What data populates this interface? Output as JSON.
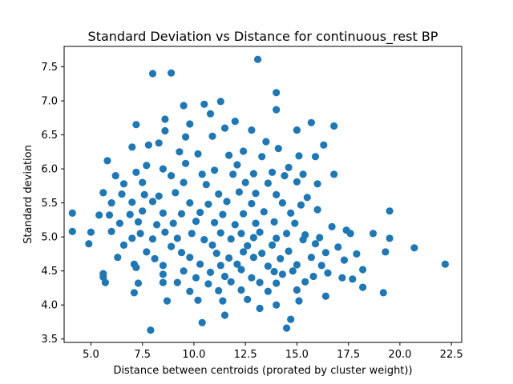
{
  "chart_data": {
    "type": "scatter",
    "title": "Standard Deviation vs Distance for continuous_rest BP",
    "xlabel": "Distance between centroids (prorated by cluster weight))",
    "ylabel": "Standard deviation",
    "xlim": [
      3.7,
      23.0
    ],
    "ylim": [
      3.45,
      7.8
    ],
    "xticks": [
      5.0,
      7.5,
      10.0,
      12.5,
      15.0,
      17.5,
      20.0,
      22.5
    ],
    "xtick_labels": [
      "5.0",
      "7.5",
      "10.0",
      "12.5",
      "15.0",
      "17.5",
      "20.0",
      "22.5"
    ],
    "yticks": [
      3.5,
      4.0,
      4.5,
      5.0,
      5.5,
      6.0,
      6.5,
      7.0,
      7.5
    ],
    "ytick_labels": [
      "3.5",
      "4.0",
      "4.5",
      "5.0",
      "5.5",
      "6.0",
      "6.5",
      "7.0",
      "7.5"
    ],
    "grid": false,
    "legend": "none",
    "marker_color": "#1f77b4",
    "points": [
      [
        13.1,
        7.61
      ],
      [
        8.0,
        7.4
      ],
      [
        8.9,
        7.41
      ],
      [
        14.0,
        7.12
      ],
      [
        11.3,
        6.99
      ],
      [
        10.5,
        6.95
      ],
      [
        9.5,
        6.93
      ],
      [
        14.0,
        6.87
      ],
      [
        10.8,
        6.81
      ],
      [
        8.6,
        6.73
      ],
      [
        12.0,
        6.7
      ],
      [
        9.8,
        6.66
      ],
      [
        7.2,
        6.65
      ],
      [
        16.8,
        6.63
      ],
      [
        8.6,
        6.56
      ],
      [
        15.0,
        6.57
      ],
      [
        11.5,
        6.6
      ],
      [
        12.8,
        6.57
      ],
      [
        15.7,
        6.68
      ],
      [
        9.6,
        6.47
      ],
      [
        10.9,
        6.48
      ],
      [
        13.5,
        6.4
      ],
      [
        7.8,
        6.35
      ],
      [
        8.3,
        6.38
      ],
      [
        16.3,
        6.35
      ],
      [
        5.8,
        6.12
      ],
      [
        7.0,
        6.32
      ],
      [
        9.3,
        6.25
      ],
      [
        10.2,
        6.22
      ],
      [
        11.7,
        6.2
      ],
      [
        12.4,
        6.26
      ],
      [
        13.3,
        6.18
      ],
      [
        14.1,
        6.3
      ],
      [
        15.1,
        6.19
      ],
      [
        15.9,
        6.18
      ],
      [
        8.5,
        6.0
      ],
      [
        9.6,
        6.08
      ],
      [
        11.0,
        5.98
      ],
      [
        12.1,
        6.06
      ],
      [
        13.8,
        5.95
      ],
      [
        14.6,
        6.02
      ],
      [
        7.7,
        6.05
      ],
      [
        6.2,
        5.9
      ],
      [
        7.2,
        5.95
      ],
      [
        8.9,
        5.9
      ],
      [
        10.4,
        5.92
      ],
      [
        11.9,
        5.92
      ],
      [
        12.9,
        5.93
      ],
      [
        14.4,
        5.9
      ],
      [
        15.3,
        5.92
      ],
      [
        16.8,
        5.92
      ],
      [
        6.6,
        5.78
      ],
      [
        7.5,
        5.8
      ],
      [
        9.5,
        5.8
      ],
      [
        10.6,
        5.77
      ],
      [
        12.5,
        5.8
      ],
      [
        13.6,
        5.79
      ],
      [
        15.0,
        5.81
      ],
      [
        16.0,
        5.78
      ],
      [
        5.6,
        5.65
      ],
      [
        6.5,
        5.63
      ],
      [
        7.6,
        5.62
      ],
      [
        8.3,
        5.6
      ],
      [
        9.1,
        5.65
      ],
      [
        11.2,
        5.63
      ],
      [
        12.2,
        5.66
      ],
      [
        13.0,
        5.64
      ],
      [
        14.0,
        5.62
      ],
      [
        15.5,
        5.58
      ],
      [
        6.0,
        5.5
      ],
      [
        7.0,
        5.51
      ],
      [
        8.0,
        5.52
      ],
      [
        9.8,
        5.5
      ],
      [
        10.7,
        5.48
      ],
      [
        11.6,
        5.52
      ],
      [
        12.8,
        5.49
      ],
      [
        14.3,
        5.5
      ],
      [
        15.2,
        5.47
      ],
      [
        5.9,
        5.32
      ],
      [
        6.9,
        5.33
      ],
      [
        7.5,
        5.38
      ],
      [
        8.5,
        5.35
      ],
      [
        9.4,
        5.34
      ],
      [
        10.3,
        5.36
      ],
      [
        11.4,
        5.33
      ],
      [
        12.4,
        5.34
      ],
      [
        13.4,
        5.37
      ],
      [
        14.7,
        5.35
      ],
      [
        16.0,
        5.4
      ],
      [
        19.5,
        5.38
      ],
      [
        4.1,
        5.35
      ],
      [
        5.4,
        5.32
      ],
      [
        6.4,
        5.2
      ],
      [
        7.3,
        5.22
      ],
      [
        8.2,
        5.18
      ],
      [
        9.0,
        5.2
      ],
      [
        10.1,
        5.23
      ],
      [
        11.0,
        5.21
      ],
      [
        12.0,
        5.18
      ],
      [
        13.0,
        5.2
      ],
      [
        13.9,
        5.22
      ],
      [
        14.9,
        5.2
      ],
      [
        16.7,
        5.15
      ],
      [
        17.4,
        5.1
      ],
      [
        4.1,
        5.08
      ],
      [
        5.0,
        5.07
      ],
      [
        6.0,
        5.08
      ],
      [
        7.4,
        5.05
      ],
      [
        8.6,
        5.07
      ],
      [
        9.9,
        5.05
      ],
      [
        11.3,
        5.06
      ],
      [
        12.3,
        5.05
      ],
      [
        13.2,
        5.07
      ],
      [
        14.5,
        5.05
      ],
      [
        15.4,
        5.03
      ],
      [
        17.6,
        5.05
      ],
      [
        18.7,
        5.05
      ],
      [
        7.0,
        4.98
      ],
      [
        8.0,
        4.97
      ],
      [
        9.2,
        4.98
      ],
      [
        10.5,
        4.96
      ],
      [
        11.8,
        4.97
      ],
      [
        12.9,
        4.99
      ],
      [
        14.0,
        4.98
      ],
      [
        15.3,
        4.96
      ],
      [
        16.1,
        4.99
      ],
      [
        19.5,
        4.98
      ],
      [
        4.9,
        4.9
      ],
      [
        6.6,
        4.88
      ],
      [
        8.9,
        4.86
      ],
      [
        10.9,
        4.88
      ],
      [
        12.6,
        4.87
      ],
      [
        13.8,
        4.88
      ],
      [
        15.9,
        4.9
      ],
      [
        17.0,
        4.85
      ],
      [
        20.7,
        4.84
      ],
      [
        7.7,
        4.78
      ],
      [
        9.4,
        4.77
      ],
      [
        11.1,
        4.76
      ],
      [
        12.4,
        4.78
      ],
      [
        13.3,
        4.76
      ],
      [
        14.6,
        4.79
      ],
      [
        16.4,
        4.77
      ],
      [
        17.9,
        4.75
      ],
      [
        19.3,
        4.78
      ],
      [
        6.3,
        4.7
      ],
      [
        8.1,
        4.68
      ],
      [
        9.8,
        4.7
      ],
      [
        11.7,
        4.69
      ],
      [
        12.9,
        4.7
      ],
      [
        14.2,
        4.68
      ],
      [
        15.7,
        4.7
      ],
      [
        17.3,
        4.66
      ],
      [
        7.1,
        4.6
      ],
      [
        8.5,
        4.58
      ],
      [
        10.3,
        4.6
      ],
      [
        11.3,
        4.58
      ],
      [
        12.1,
        4.6
      ],
      [
        13.6,
        4.57
      ],
      [
        15.0,
        4.59
      ],
      [
        16.2,
        4.58
      ],
      [
        22.2,
        4.6
      ],
      [
        5.6,
        4.46
      ],
      [
        7.2,
        4.55
      ],
      [
        9.5,
        4.5
      ],
      [
        10.8,
        4.48
      ],
      [
        12.3,
        4.52
      ],
      [
        13.9,
        4.49
      ],
      [
        14.8,
        4.5
      ],
      [
        16.5,
        4.47
      ],
      [
        18.2,
        4.52
      ],
      [
        5.6,
        4.41
      ],
      [
        8.5,
        4.45
      ],
      [
        10.1,
        4.4
      ],
      [
        11.5,
        4.42
      ],
      [
        12.8,
        4.4
      ],
      [
        14.3,
        4.45
      ],
      [
        15.8,
        4.42
      ],
      [
        17.2,
        4.4
      ],
      [
        5.7,
        4.33
      ],
      [
        7.3,
        4.32
      ],
      [
        9.2,
        4.33
      ],
      [
        10.7,
        4.31
      ],
      [
        11.8,
        4.34
      ],
      [
        13.2,
        4.33
      ],
      [
        14.0,
        4.32
      ],
      [
        15.4,
        4.34
      ],
      [
        17.7,
        4.38
      ],
      [
        18.2,
        4.26
      ],
      [
        8.5,
        4.33
      ],
      [
        9.8,
        4.2
      ],
      [
        11.2,
        4.21
      ],
      [
        12.3,
        4.22
      ],
      [
        13.6,
        4.2
      ],
      [
        15.0,
        4.22
      ],
      [
        16.4,
        4.13
      ],
      [
        7.1,
        4.18
      ],
      [
        19.2,
        4.18
      ],
      [
        8.7,
        4.06
      ],
      [
        10.2,
        4.07
      ],
      [
        11.4,
        4.06
      ],
      [
        12.6,
        4.08
      ],
      [
        14.0,
        4.0
      ],
      [
        15.1,
        4.06
      ],
      [
        13.2,
        3.95
      ],
      [
        11.5,
        3.85
      ],
      [
        10.4,
        3.74
      ],
      [
        14.7,
        3.79
      ],
      [
        14.5,
        3.66
      ],
      [
        7.9,
        3.63
      ]
    ]
  }
}
